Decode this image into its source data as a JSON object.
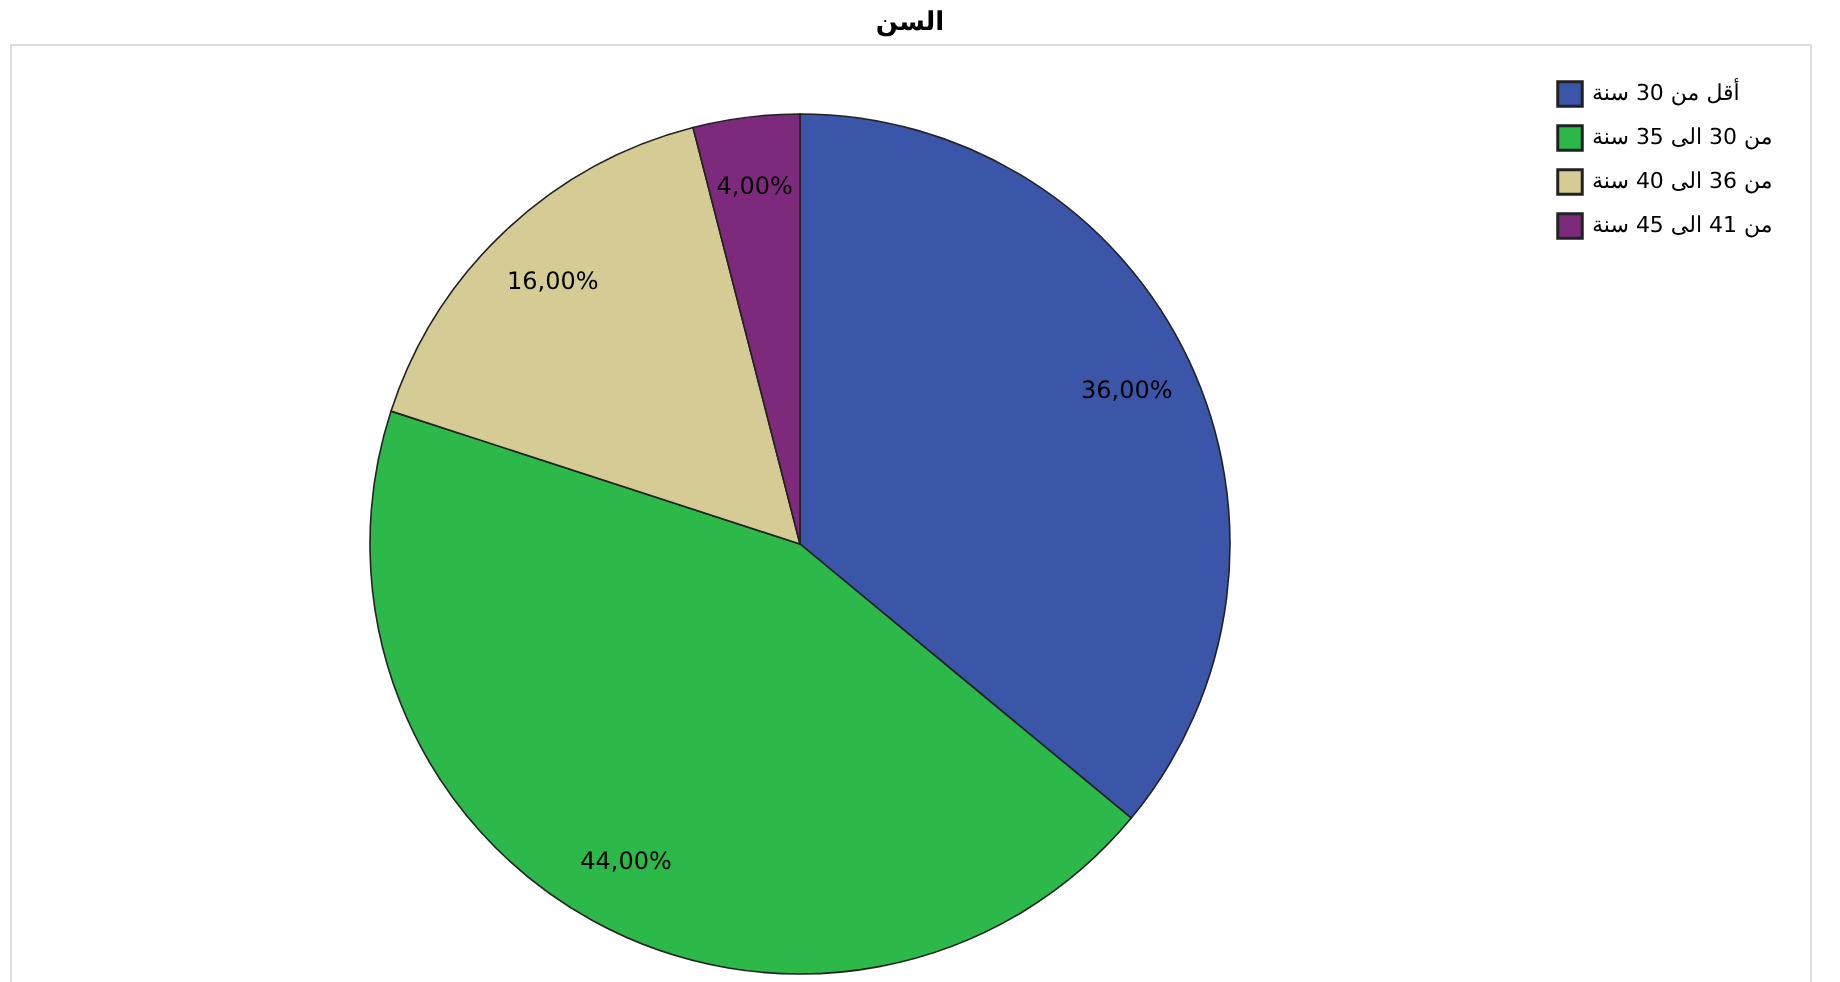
{
  "chart_data": {
    "type": "pie",
    "title": "السن",
    "categories": [
      "أقل من 30 سنة",
      "من 30 الى 35 سنة",
      "من 36 الى 40 سنة",
      "من 41 الى 45 سنة"
    ],
    "values": [
      36,
      44,
      16,
      4
    ],
    "colors": [
      "#3b55a8",
      "#2db84a",
      "#d4cc94",
      "#7d2a7c"
    ],
    "value_labels": [
      "36,00%",
      "44,00%",
      "16,00%",
      "4,00%"
    ],
    "legend": "top right"
  }
}
